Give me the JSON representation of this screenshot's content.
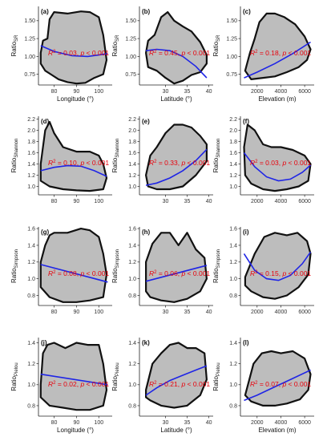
{
  "chart_data": [
    {
      "id": "a",
      "type": "scatter",
      "label": "(a)",
      "ylabel": "Ratio",
      "ylabel_sub": "SR",
      "xlabel": "Longitude (°)",
      "xticks": [
        80,
        90,
        100
      ],
      "yticks": [
        0.75,
        1.0,
        1.25,
        1.5
      ],
      "xlim": [
        73,
        106
      ],
      "ylim": [
        0.6,
        1.7
      ],
      "cloud": [
        [
          74,
          1.05
        ],
        [
          75,
          1.22
        ],
        [
          77,
          1.25
        ],
        [
          78,
          1.52
        ],
        [
          80,
          1.62
        ],
        [
          86,
          1.6
        ],
        [
          92,
          1.63
        ],
        [
          96,
          1.62
        ],
        [
          100,
          1.55
        ],
        [
          102,
          1.3
        ],
        [
          103.5,
          0.95
        ],
        [
          102,
          0.75
        ],
        [
          98,
          0.7
        ],
        [
          94,
          0.63
        ],
        [
          90,
          0.62
        ],
        [
          86,
          0.64
        ],
        [
          82,
          0.68
        ],
        [
          79,
          0.74
        ],
        [
          76,
          0.8
        ],
        [
          74,
          0.9
        ]
      ],
      "fit": [
        [
          74,
          1.15
        ],
        [
          80,
          1.07
        ],
        [
          88,
          1.01
        ],
        [
          95,
          1.0
        ],
        [
          100,
          1.02
        ],
        [
          104,
          1.04
        ]
      ],
      "annot": {
        "r2": "0.03",
        "p": "< 0.001"
      }
    },
    {
      "id": "b",
      "type": "scatter",
      "label": "(b)",
      "ylabel": "Ratio",
      "ylabel_sub": "SR",
      "xlabel": "Latitude (°)",
      "xticks": [
        30,
        35,
        40
      ],
      "yticks": [
        0.75,
        1.0,
        1.25,
        1.5
      ],
      "xlim": [
        24,
        41
      ],
      "ylim": [
        0.6,
        1.7
      ],
      "cloud": [
        [
          25.5,
          1.05
        ],
        [
          26,
          1.22
        ],
        [
          27.5,
          1.3
        ],
        [
          29,
          1.55
        ],
        [
          30.5,
          1.62
        ],
        [
          32,
          1.5
        ],
        [
          34,
          1.42
        ],
        [
          36,
          1.35
        ],
        [
          38,
          1.2
        ],
        [
          39.5,
          1.02
        ],
        [
          39.5,
          0.9
        ],
        [
          38,
          0.78
        ],
        [
          36,
          0.74
        ],
        [
          34,
          0.66
        ],
        [
          32,
          0.62
        ],
        [
          30,
          0.7
        ],
        [
          28,
          0.8
        ],
        [
          26,
          0.85
        ]
      ],
      "fit": [
        [
          25.5,
          1.08
        ],
        [
          28,
          1.1
        ],
        [
          31,
          1.08
        ],
        [
          34,
          1.0
        ],
        [
          37,
          0.86
        ],
        [
          39.5,
          0.7
        ]
      ],
      "annot": {
        "r2": "0.45",
        "p": "< 0.001"
      }
    },
    {
      "id": "c",
      "type": "scatter",
      "label": "(c)",
      "ylabel": "Ratio",
      "ylabel_sub": "SR",
      "xlabel": "Elevation (m)",
      "xticks": [
        2000,
        4000,
        6000
      ],
      "yticks": [
        0.75,
        1.0,
        1.25,
        1.5
      ],
      "xlim": [
        600,
        6800
      ],
      "ylim": [
        0.6,
        1.7
      ],
      "cloud": [
        [
          1000,
          0.8
        ],
        [
          1400,
          1.05
        ],
        [
          1800,
          1.25
        ],
        [
          2200,
          1.48
        ],
        [
          2800,
          1.6
        ],
        [
          3500,
          1.6
        ],
        [
          4300,
          1.55
        ],
        [
          5200,
          1.45
        ],
        [
          6000,
          1.28
        ],
        [
          6500,
          1.1
        ],
        [
          6200,
          0.95
        ],
        [
          5500,
          0.85
        ],
        [
          4500,
          0.78
        ],
        [
          3500,
          0.72
        ],
        [
          2500,
          0.7
        ],
        [
          1500,
          0.68
        ]
      ],
      "fit": [
        [
          900,
          0.7
        ],
        [
          2000,
          0.78
        ],
        [
          3500,
          0.9
        ],
        [
          5000,
          1.04
        ],
        [
          6500,
          1.2
        ]
      ],
      "annot": {
        "r2": "0.18",
        "p": "< 0.001"
      }
    },
    {
      "id": "d",
      "type": "scatter",
      "label": "(d)",
      "ylabel": "Ratio",
      "ylabel_sub": "Shannon",
      "xlabel": "",
      "xticks": [
        80,
        90,
        100
      ],
      "yticks": [
        1.0,
        1.2,
        1.4,
        1.6,
        1.8,
        2.0,
        2.2
      ],
      "xlim": [
        73,
        106
      ],
      "ylim": [
        0.85,
        2.25
      ],
      "cloud": [
        [
          74,
          1.4
        ],
        [
          76,
          2.0
        ],
        [
          78,
          2.15
        ],
        [
          80,
          1.95
        ],
        [
          84,
          1.7
        ],
        [
          90,
          1.62
        ],
        [
          96,
          1.62
        ],
        [
          100,
          1.55
        ],
        [
          102,
          1.4
        ],
        [
          103.5,
          1.15
        ],
        [
          102,
          0.95
        ],
        [
          96,
          0.92
        ],
        [
          90,
          0.93
        ],
        [
          84,
          0.95
        ],
        [
          78,
          1.0
        ],
        [
          74,
          1.1
        ]
      ],
      "fit": [
        [
          74,
          1.28
        ],
        [
          80,
          1.34
        ],
        [
          86,
          1.37
        ],
        [
          92,
          1.36
        ],
        [
          98,
          1.28
        ],
        [
          103.5,
          1.18
        ]
      ],
      "annot": {
        "r2": "0.10",
        "p": "< 0.001"
      }
    },
    {
      "id": "e",
      "type": "scatter",
      "label": "(e)",
      "ylabel": "Ratio",
      "ylabel_sub": "Shannon",
      "xlabel": "",
      "xticks": [
        30,
        35,
        40
      ],
      "yticks": [
        1.0,
        1.2,
        1.4,
        1.6,
        1.8,
        2.0,
        2.2
      ],
      "xlim": [
        24,
        41
      ],
      "ylim": [
        0.85,
        2.25
      ],
      "cloud": [
        [
          25.5,
          1.2
        ],
        [
          26.5,
          1.55
        ],
        [
          28,
          1.7
        ],
        [
          30,
          1.95
        ],
        [
          32,
          2.1
        ],
        [
          34,
          2.1
        ],
        [
          36,
          2.05
        ],
        [
          38,
          1.9
        ],
        [
          39.5,
          1.75
        ],
        [
          39.5,
          1.45
        ],
        [
          37,
          1.2
        ],
        [
          34,
          1.0
        ],
        [
          31,
          0.95
        ],
        [
          28,
          0.95
        ],
        [
          26,
          1.0
        ]
      ],
      "fit": [
        [
          25.5,
          1.02
        ],
        [
          28,
          1.06
        ],
        [
          31,
          1.15
        ],
        [
          34,
          1.28
        ],
        [
          37,
          1.46
        ],
        [
          39.5,
          1.66
        ]
      ],
      "annot": {
        "r2": "0.33",
        "p": "< 0.001"
      }
    },
    {
      "id": "f",
      "type": "scatter",
      "label": "(f)",
      "ylabel": "Ratio",
      "ylabel_sub": "Shannon",
      "xlabel": "",
      "xticks": [
        2000,
        4000,
        6000
      ],
      "yticks": [
        1.0,
        1.2,
        1.4,
        1.6,
        1.8,
        2.0,
        2.2
      ],
      "xlim": [
        600,
        6800
      ],
      "ylim": [
        0.85,
        2.25
      ],
      "cloud": [
        [
          900,
          1.7
        ],
        [
          1200,
          2.1
        ],
        [
          1800,
          2.0
        ],
        [
          2500,
          1.75
        ],
        [
          3200,
          1.7
        ],
        [
          4000,
          1.7
        ],
        [
          5000,
          1.65
        ],
        [
          6000,
          1.55
        ],
        [
          6500,
          1.4
        ],
        [
          6300,
          1.1
        ],
        [
          5500,
          1.0
        ],
        [
          4500,
          0.95
        ],
        [
          3500,
          0.92
        ],
        [
          2500,
          0.95
        ],
        [
          1500,
          1.05
        ],
        [
          1000,
          1.2
        ]
      ],
      "fit": [
        [
          900,
          1.6
        ],
        [
          1800,
          1.35
        ],
        [
          2800,
          1.17
        ],
        [
          3800,
          1.1
        ],
        [
          4800,
          1.13
        ],
        [
          5800,
          1.25
        ],
        [
          6500,
          1.38
        ]
      ],
      "annot": {
        "r2": "0.03",
        "p": "< 0.001"
      }
    },
    {
      "id": "g",
      "type": "scatter",
      "label": "(g)",
      "ylabel": "Ratio",
      "ylabel_sub": "Simpson",
      "xlabel": "",
      "xticks": [
        80,
        90,
        100
      ],
      "yticks": [
        0.8,
        1.0,
        1.2,
        1.4,
        1.6
      ],
      "xlim": [
        73,
        106
      ],
      "ylim": [
        0.68,
        1.62
      ],
      "cloud": [
        [
          74,
          1.2
        ],
        [
          76,
          1.4
        ],
        [
          78,
          1.52
        ],
        [
          80,
          1.55
        ],
        [
          86,
          1.55
        ],
        [
          92,
          1.6
        ],
        [
          96,
          1.58
        ],
        [
          100,
          1.5
        ],
        [
          102,
          1.3
        ],
        [
          103.5,
          1.05
        ],
        [
          102,
          0.78
        ],
        [
          96,
          0.74
        ],
        [
          90,
          0.72
        ],
        [
          84,
          0.72
        ],
        [
          78,
          0.78
        ],
        [
          74,
          0.9
        ]
      ],
      "fit": [
        [
          74,
          1.17
        ],
        [
          104,
          0.96
        ]
      ],
      "annot": {
        "r2": "0.08",
        "p": "< 0.001"
      }
    },
    {
      "id": "h",
      "type": "scatter",
      "label": "(h)",
      "ylabel": "Ratio",
      "ylabel_sub": "Simpson",
      "xlabel": "",
      "xticks": [
        30,
        35,
        40
      ],
      "yticks": [
        0.8,
        1.0,
        1.2,
        1.4,
        1.6
      ],
      "xlim": [
        24,
        41
      ],
      "ylim": [
        0.68,
        1.62
      ],
      "cloud": [
        [
          25.5,
          1.2
        ],
        [
          27,
          1.42
        ],
        [
          29,
          1.55
        ],
        [
          31,
          1.55
        ],
        [
          33,
          1.4
        ],
        [
          35,
          1.55
        ],
        [
          37,
          1.35
        ],
        [
          39,
          1.25
        ],
        [
          39.5,
          1.0
        ],
        [
          38,
          0.85
        ],
        [
          35,
          0.76
        ],
        [
          32,
          0.72
        ],
        [
          29,
          0.74
        ],
        [
          26.5,
          0.78
        ],
        [
          25.5,
          0.85
        ]
      ],
      "fit": [
        [
          25.5,
          0.97
        ],
        [
          39.5,
          1.16
        ]
      ],
      "annot": {
        "r2": "0.06",
        "p": "< 0.001"
      }
    },
    {
      "id": "i",
      "type": "scatter",
      "label": "(i)",
      "ylabel": "Ratio",
      "ylabel_sub": "Simpson",
      "xlabel": "",
      "xticks": [
        2000,
        4000,
        6000
      ],
      "yticks": [
        0.8,
        1.0,
        1.2,
        1.4,
        1.6
      ],
      "xlim": [
        600,
        6800
      ],
      "ylim": [
        0.68,
        1.62
      ],
      "cloud": [
        [
          1000,
          1.02
        ],
        [
          1800,
          1.3
        ],
        [
          2600,
          1.5
        ],
        [
          3500,
          1.55
        ],
        [
          4500,
          1.52
        ],
        [
          5400,
          1.55
        ],
        [
          6200,
          1.45
        ],
        [
          6500,
          1.3
        ],
        [
          6300,
          1.05
        ],
        [
          5500,
          0.9
        ],
        [
          4500,
          0.8
        ],
        [
          3500,
          0.76
        ],
        [
          2500,
          0.78
        ],
        [
          1500,
          0.85
        ],
        [
          1000,
          0.92
        ]
      ],
      "fit": [
        [
          900,
          1.3
        ],
        [
          1800,
          1.1
        ],
        [
          2800,
          1.0
        ],
        [
          3800,
          0.98
        ],
        [
          4800,
          1.04
        ],
        [
          5800,
          1.18
        ],
        [
          6500,
          1.32
        ]
      ],
      "annot": {
        "r2": "0.15",
        "p": "< 0.001"
      }
    },
    {
      "id": "j",
      "type": "scatter",
      "label": "(j)",
      "ylabel": "Ratio",
      "ylabel_sub": "Pielou",
      "xlabel": "Longitude (°)",
      "xticks": [
        80,
        90,
        100
      ],
      "yticks": [
        0.8,
        1.0,
        1.2,
        1.4
      ],
      "xlim": [
        73,
        106
      ],
      "ylim": [
        0.7,
        1.45
      ],
      "cloud": [
        [
          74,
          1.0
        ],
        [
          75,
          1.3
        ],
        [
          77,
          1.38
        ],
        [
          80,
          1.4
        ],
        [
          85,
          1.35
        ],
        [
          90,
          1.4
        ],
        [
          95,
          1.38
        ],
        [
          100,
          1.38
        ],
        [
          102,
          1.2
        ],
        [
          103.5,
          0.95
        ],
        [
          102,
          0.8
        ],
        [
          96,
          0.76
        ],
        [
          90,
          0.76
        ],
        [
          84,
          0.78
        ],
        [
          78,
          0.8
        ],
        [
          74,
          0.88
        ]
      ],
      "fit": [
        [
          74,
          1.1
        ],
        [
          104,
          1.0
        ]
      ],
      "annot": {
        "r2": "0.02",
        "p": "< 0.001"
      }
    },
    {
      "id": "k",
      "type": "scatter",
      "label": "(k)",
      "ylabel": "Ratio",
      "ylabel_sub": "Pielou",
      "xlabel": "Latitude (°)",
      "xticks": [
        30,
        35,
        40
      ],
      "yticks": [
        0.8,
        1.0,
        1.2,
        1.4
      ],
      "xlim": [
        24,
        41
      ],
      "ylim": [
        0.7,
        1.45
      ],
      "cloud": [
        [
          25.5,
          0.95
        ],
        [
          27,
          1.2
        ],
        [
          29,
          1.3
        ],
        [
          31,
          1.38
        ],
        [
          33,
          1.4
        ],
        [
          35,
          1.35
        ],
        [
          37,
          1.35
        ],
        [
          39,
          1.3
        ],
        [
          39.5,
          1.05
        ],
        [
          38,
          0.9
        ],
        [
          35,
          0.8
        ],
        [
          32,
          0.78
        ],
        [
          29,
          0.8
        ],
        [
          26.5,
          0.85
        ],
        [
          25.5,
          0.88
        ]
      ],
      "fit": [
        [
          25.5,
          0.9
        ],
        [
          28,
          0.97
        ],
        [
          31,
          1.04
        ],
        [
          34,
          1.09
        ],
        [
          37,
          1.14
        ],
        [
          39.5,
          1.18
        ]
      ],
      "annot": {
        "r2": "0.21",
        "p": "< 0.001"
      }
    },
    {
      "id": "l",
      "type": "scatter",
      "label": "(l)",
      "ylabel": "Ratio",
      "ylabel_sub": "Pielou",
      "xlabel": "Elevation (m)",
      "xticks": [
        2000,
        4000,
        6000
      ],
      "yticks": [
        0.8,
        1.0,
        1.2,
        1.4
      ],
      "xlim": [
        600,
        6800
      ],
      "ylim": [
        0.7,
        1.45
      ],
      "cloud": [
        [
          1000,
          0.9
        ],
        [
          1700,
          1.2
        ],
        [
          2400,
          1.3
        ],
        [
          3200,
          1.32
        ],
        [
          4000,
          1.3
        ],
        [
          5000,
          1.32
        ],
        [
          6000,
          1.25
        ],
        [
          6500,
          1.1
        ],
        [
          6300,
          0.95
        ],
        [
          5600,
          0.86
        ],
        [
          4500,
          0.82
        ],
        [
          3500,
          0.8
        ],
        [
          2500,
          0.8
        ],
        [
          1500,
          0.84
        ]
      ],
      "fit": [
        [
          900,
          0.85
        ],
        [
          2000,
          0.9
        ],
        [
          3500,
          0.98
        ],
        [
          5000,
          1.06
        ],
        [
          6500,
          1.14
        ]
      ],
      "annot": {
        "r2": "0.07",
        "p": "< 0.001"
      }
    }
  ],
  "colors": {
    "cloud": "#bdbdbd",
    "edge": "#111111",
    "fit": "#1f25e6",
    "annotation": "#e8000b"
  }
}
